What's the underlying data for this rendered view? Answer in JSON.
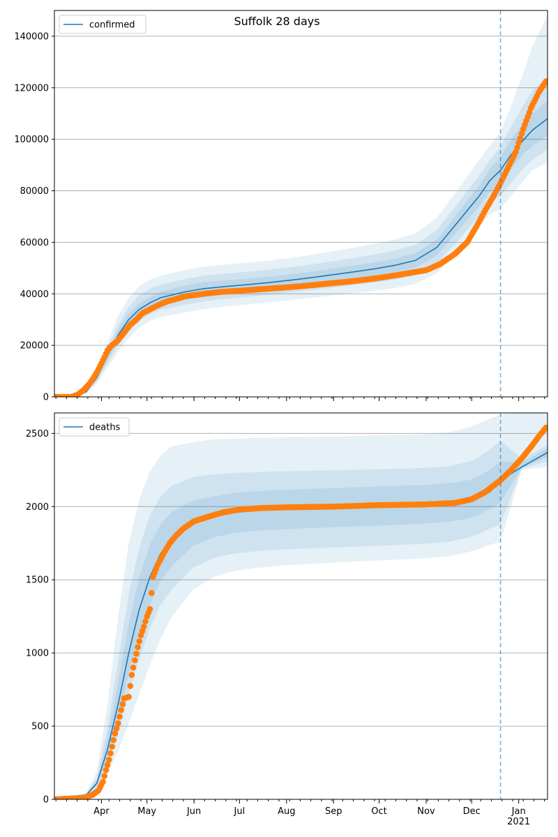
{
  "figure_title": "Suffolk 28 days",
  "colors": {
    "model": "#1f77b4",
    "observed": "#ff7f0e",
    "band": "#1f77b4",
    "grid": "#b0b0b0",
    "today_line": "#1f77b4"
  },
  "x_axis": {
    "labels": [
      "Apr",
      "May",
      "Jun",
      "Jul",
      "Aug",
      "Sep",
      "Oct",
      "Nov",
      "Dec",
      "Jan"
    ],
    "year_label": "2021",
    "range": [
      "2020-03-01",
      "2021-01-20"
    ]
  },
  "today_marker": "2020-12-20",
  "chart_data": [
    {
      "type": "line",
      "legend": "confirmed",
      "legend_location": "upper left",
      "grid": "horizontal",
      "ylim": [
        0,
        150000
      ],
      "yticks": [
        0,
        20000,
        40000,
        60000,
        80000,
        100000,
        120000,
        140000
      ],
      "model": {
        "x": [
          "2020-03-01",
          "2020-03-15",
          "2020-03-22",
          "2020-03-29",
          "2020-04-05",
          "2020-04-12",
          "2020-04-19",
          "2020-04-26",
          "2020-05-03",
          "2020-05-10",
          "2020-05-24",
          "2020-06-07",
          "2020-06-21",
          "2020-07-05",
          "2020-07-19",
          "2020-08-02",
          "2020-08-16",
          "2020-08-30",
          "2020-09-13",
          "2020-09-27",
          "2020-10-11",
          "2020-10-25",
          "2020-11-08",
          "2020-11-22",
          "2020-12-06",
          "2020-12-13",
          "2020-12-20",
          "2020-12-27",
          "2021-01-03",
          "2021-01-10",
          "2021-01-20"
        ],
        "y": [
          0,
          200,
          2000,
          7500,
          16000,
          24000,
          30000,
          34000,
          36500,
          38500,
          40500,
          42000,
          42800,
          43500,
          44300,
          45200,
          46200,
          47300,
          48400,
          49600,
          51000,
          53000,
          58000,
          68000,
          78000,
          84000,
          88000,
          94000,
          99000,
          103500,
          108000
        ],
        "bands": [
          {
            "lo": [
              0,
              100,
              1300,
              5200,
              11500,
              17500,
              23000,
              27000,
              29500,
              31000,
              32500,
              34000,
              35000,
              35800,
              36600,
              37500,
              38400,
              39300,
              40200,
              41100,
              42200,
              43800,
              48000,
              57000,
              66000,
              71000,
              73000,
              78000,
              83000,
              88000,
              91000
            ],
            "hi": [
              0,
              300,
              2700,
              10000,
              21000,
              31500,
              38500,
              43000,
              45500,
              47000,
              49000,
              50500,
              51300,
              52000,
              52800,
              53800,
              55000,
              56400,
              57800,
              59300,
              61000,
              63500,
              69500,
              80500,
              92000,
              97500,
              103000,
              113000,
              124000,
              136000,
              148000
            ]
          },
          {
            "lo": [
              0,
              150,
              1550,
              6000,
              13000,
              20000,
              25500,
              29500,
              32000,
              33800,
              35500,
              37000,
              38000,
              38800,
              39600,
              40500,
              41400,
              42300,
              43300,
              44300,
              45500,
              47200,
              51600,
              60800,
              70000,
              75200,
              78000,
              83000,
              88000,
              92000,
              96000
            ],
            "hi": [
              0,
              250,
              2450,
              9000,
              19000,
              28000,
              35000,
              39500,
              42000,
              43500,
              45500,
              47000,
              47800,
              48500,
              49300,
              50200,
              51300,
              52500,
              53800,
              55200,
              56800,
              59000,
              64800,
              75200,
              86000,
              92000,
              97000,
              105000,
              112000,
              119000,
              124000
            ]
          },
          {
            "lo": [
              0,
              170,
              1750,
              6700,
              14500,
              22000,
              27800,
              31800,
              34300,
              36200,
              38000,
              39500,
              40400,
              41200,
              42000,
              42900,
              43900,
              44900,
              46000,
              47100,
              48400,
              50200,
              54900,
              64500,
              74000,
              79500,
              83000,
              88500,
              93500,
              97500,
              101500
            ],
            "hi": [
              0,
              230,
              2250,
              8300,
              17500,
              26000,
              32300,
              36300,
              38700,
              40800,
              43000,
              44500,
              45200,
              45800,
              46600,
              47500,
              48500,
              49700,
              50800,
              52100,
              53600,
              55800,
              61100,
              71500,
              82000,
              88500,
              93000,
              100000,
              105500,
              110000,
              115000
            ]
          }
        ]
      },
      "observed": {
        "x": [
          "2020-03-01",
          "2020-03-12",
          "2020-03-16",
          "2020-03-20",
          "2020-03-24",
          "2020-03-28",
          "2020-04-01",
          "2020-04-03",
          "2020-04-05",
          "2020-04-07",
          "2020-04-09",
          "2020-04-12",
          "2020-04-16",
          "2020-04-20",
          "2020-04-24",
          "2020-04-28",
          "2020-05-03",
          "2020-05-08",
          "2020-05-14",
          "2020-05-20",
          "2020-05-26",
          "2020-06-01",
          "2020-06-10",
          "2020-06-20",
          "2020-07-01",
          "2020-07-15",
          "2020-08-01",
          "2020-08-15",
          "2020-09-01",
          "2020-09-15",
          "2020-10-01",
          "2020-10-15",
          "2020-11-01",
          "2020-11-10",
          "2020-11-20",
          "2020-11-28",
          "2020-12-05",
          "2020-12-10",
          "2020-12-15",
          "2020-12-20",
          "2020-12-25",
          "2020-12-30",
          "2021-01-04",
          "2021-01-09",
          "2021-01-14",
          "2021-01-19"
        ],
        "y": [
          0,
          0,
          800,
          2500,
          5000,
          8500,
          13000,
          15500,
          18000,
          19500,
          20500,
          22000,
          25000,
          28000,
          30000,
          32500,
          34000,
          35500,
          37000,
          38000,
          39000,
          39500,
          40200,
          40800,
          41200,
          41800,
          42500,
          43200,
          44200,
          45000,
          46200,
          47500,
          49200,
          51500,
          55500,
          60000,
          67000,
          72500,
          77500,
          83000,
          89000,
          95000,
          104000,
          112000,
          118000,
          122500
        ]
      }
    },
    {
      "type": "line",
      "legend": "deaths",
      "legend_location": "upper left",
      "grid": "horizontal",
      "ylim": [
        0,
        2640
      ],
      "yticks": [
        0,
        500,
        1000,
        1500,
        2000,
        2500
      ],
      "model": {
        "x": [
          "2020-03-01",
          "2020-03-22",
          "2020-03-29",
          "2020-04-05",
          "2020-04-12",
          "2020-04-19",
          "2020-04-26",
          "2020-05-03",
          "2020-05-10",
          "2020-05-17",
          "2020-05-31",
          "2020-06-14",
          "2020-06-28",
          "2020-07-12",
          "2020-07-26",
          "2020-08-09",
          "2020-08-23",
          "2020-09-06",
          "2020-09-20",
          "2020-10-04",
          "2020-10-18",
          "2020-11-01",
          "2020-11-15",
          "2020-11-29",
          "2020-12-06",
          "2020-12-13",
          "2020-12-20",
          "2021-01-03",
          "2021-01-20"
        ],
        "y": [
          0,
          30,
          110,
          340,
          650,
          1000,
          1300,
          1520,
          1680,
          1780,
          1880,
          1930,
          1960,
          1975,
          1985,
          1990,
          1995,
          2000,
          2005,
          2008,
          2012,
          2015,
          2020,
          2040,
          2060,
          2100,
          2180,
          2270,
          2370
        ],
        "bands": [
          {
            "lo": [
              0,
              15,
              60,
              170,
              330,
              520,
              720,
              920,
              1100,
              1240,
              1430,
              1520,
              1560,
              1580,
              1595,
              1605,
              1612,
              1620,
              1627,
              1633,
              1640,
              1648,
              1660,
              1690,
              1710,
              1740,
              1760,
              2250,
              2270
            ],
            "hi": [
              0,
              45,
              190,
              650,
              1250,
              1750,
              2050,
              2240,
              2350,
              2410,
              2440,
              2460,
              2465,
              2470,
              2472,
              2475,
              2478,
              2480,
              2483,
              2486,
              2490,
              2495,
              2505,
              2540,
              2570,
              2600,
              2630,
              2650,
              2650
            ]
          },
          {
            "lo": [
              0,
              20,
              80,
              230,
              450,
              720,
              960,
              1170,
              1330,
              1430,
              1580,
              1650,
              1680,
              1695,
              1705,
              1712,
              1718,
              1723,
              1728,
              1733,
              1740,
              1748,
              1758,
              1790,
              1815,
              1850,
              1880,
              2260,
              2310
            ],
            "hi": [
              0,
              40,
              150,
              490,
              950,
              1400,
              1720,
              1940,
              2070,
              2140,
              2200,
              2220,
              2230,
              2235,
              2240,
              2243,
              2246,
              2249,
              2252,
              2256,
              2260,
              2265,
              2275,
              2305,
              2340,
              2390,
              2450,
              2330,
              2420
            ]
          },
          {
            "lo": [
              0,
              25,
              95,
              280,
              550,
              860,
              1120,
              1330,
              1490,
              1590,
              1730,
              1790,
              1820,
              1835,
              1843,
              1850,
              1856,
              1862,
              1867,
              1872,
              1878,
              1885,
              1895,
              1920,
              1945,
              1985,
              2030,
              2265,
              2340
            ],
            "hi": [
              0,
              35,
              130,
              420,
              800,
              1200,
              1520,
              1740,
              1880,
              1960,
              2040,
              2070,
              2095,
              2105,
              2113,
              2118,
              2123,
              2128,
              2133,
              2138,
              2143,
              2148,
              2158,
              2180,
              2210,
              2250,
              2310,
              2300,
              2400
            ]
          }
        ]
      },
      "observed": {
        "x": [
          "2020-03-01",
          "2020-03-20",
          "2020-03-26",
          "2020-03-30",
          "2020-04-02",
          "2020-04-04",
          "2020-04-06",
          "2020-04-08",
          "2020-04-10",
          "2020-04-12",
          "2020-04-14",
          "2020-04-16",
          "2020-04-19",
          "2020-04-21",
          "2020-04-23",
          "2020-04-25",
          "2020-04-27",
          "2020-04-29",
          "2020-05-01",
          "2020-05-03",
          "2020-05-05",
          "2020-05-08",
          "2020-05-12",
          "2020-05-16",
          "2020-05-20",
          "2020-05-25",
          "2020-06-01",
          "2020-06-10",
          "2020-06-20",
          "2020-07-01",
          "2020-07-15",
          "2020-08-01",
          "2020-09-01",
          "2020-10-01",
          "2020-11-01",
          "2020-11-20",
          "2020-12-01",
          "2020-12-10",
          "2020-12-20",
          "2020-12-27",
          "2021-01-03",
          "2021-01-10",
          "2021-01-15",
          "2021-01-19"
        ],
        "y": [
          0,
          10,
          30,
          60,
          120,
          200,
          270,
          360,
          450,
          520,
          610,
          690,
          700,
          850,
          950,
          1040,
          1120,
          1180,
          1250,
          1300,
          1520,
          1600,
          1680,
          1750,
          1800,
          1850,
          1900,
          1930,
          1960,
          1980,
          1990,
          1995,
          2000,
          2010,
          2015,
          2025,
          2050,
          2100,
          2180,
          2250,
          2330,
          2420,
          2490,
          2540
        ]
      }
    }
  ]
}
